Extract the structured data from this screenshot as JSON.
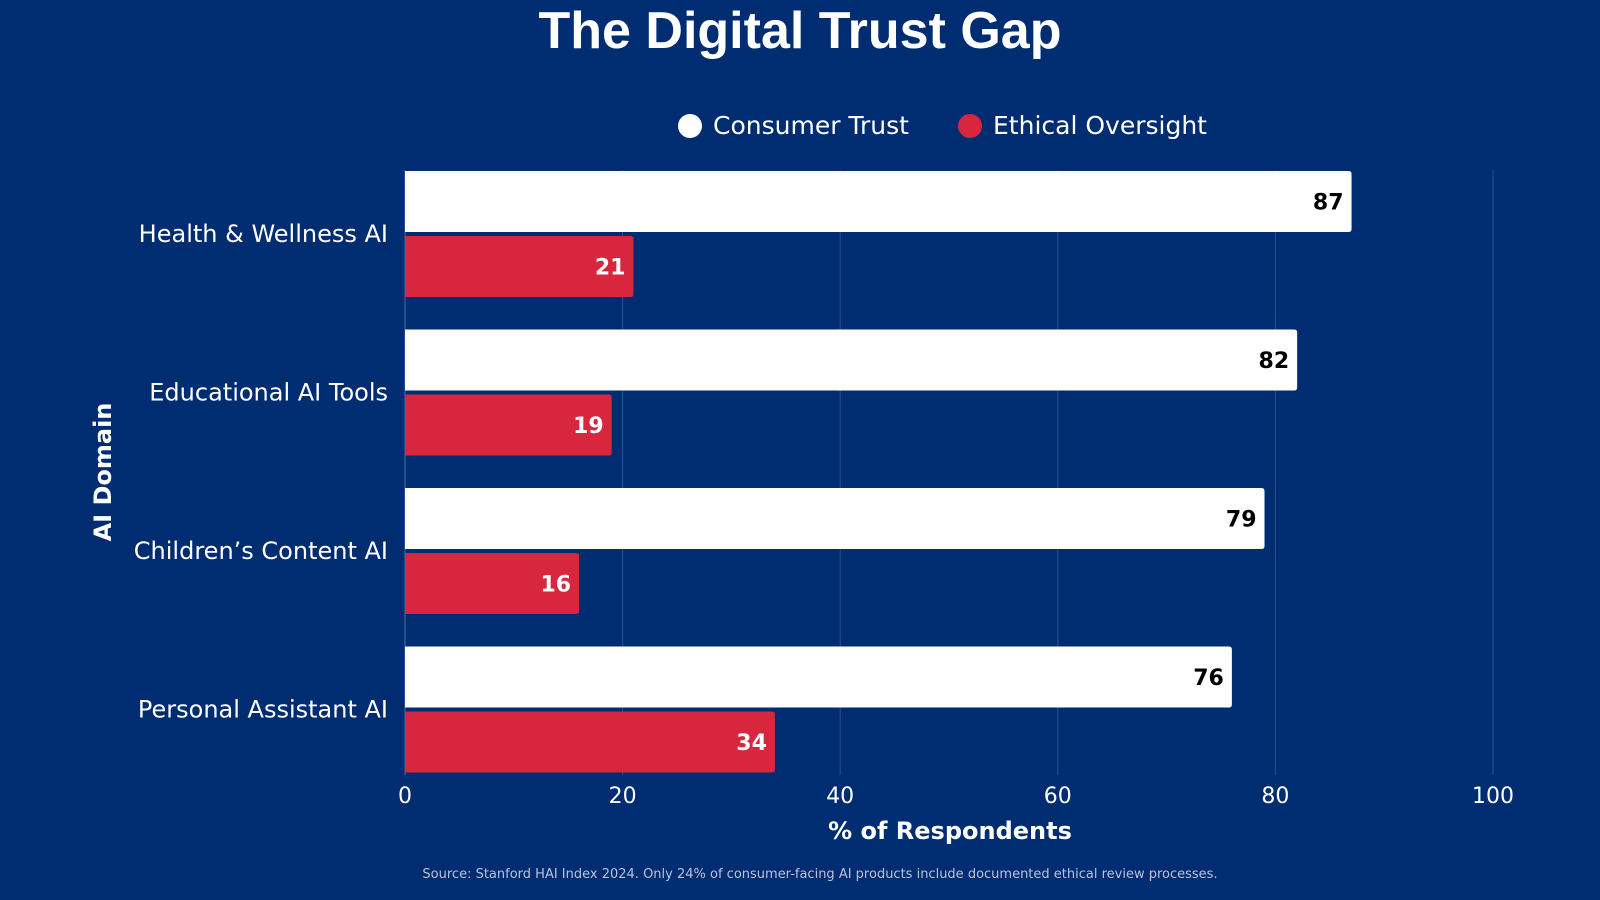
{
  "chart_data": {
    "type": "bar",
    "orientation": "horizontal",
    "title": "The Digital Trust Gap",
    "categories": [
      "Health & Wellness AI",
      "Educational AI Tools",
      "Children’s Content AI",
      "Personal Assistant AI"
    ],
    "series": [
      {
        "name": "Consumer Trust",
        "values": [
          87,
          82,
          79,
          76
        ],
        "color": "#FFFFFF",
        "label_color": "#000000"
      },
      {
        "name": "Ethical Oversight",
        "values": [
          21,
          19,
          16,
          34
        ],
        "color": "#D7263D",
        "label_color": "#FFFFFF"
      }
    ],
    "xlabel": "% of Respondents",
    "ylabel": "AI Domain",
    "xlim": [
      0,
      100
    ],
    "xticks": [
      0,
      20,
      40,
      60,
      80,
      100
    ],
    "grid": "vertical",
    "legend_position": "top-center",
    "source": "Source: Stanford HAI Index 2024. Only 24% of consumer-facing AI products include documented ethical review processes."
  },
  "colors": {
    "background": "#002D72",
    "gridline": "#2F4F8A",
    "text": "#FFFFFF"
  }
}
